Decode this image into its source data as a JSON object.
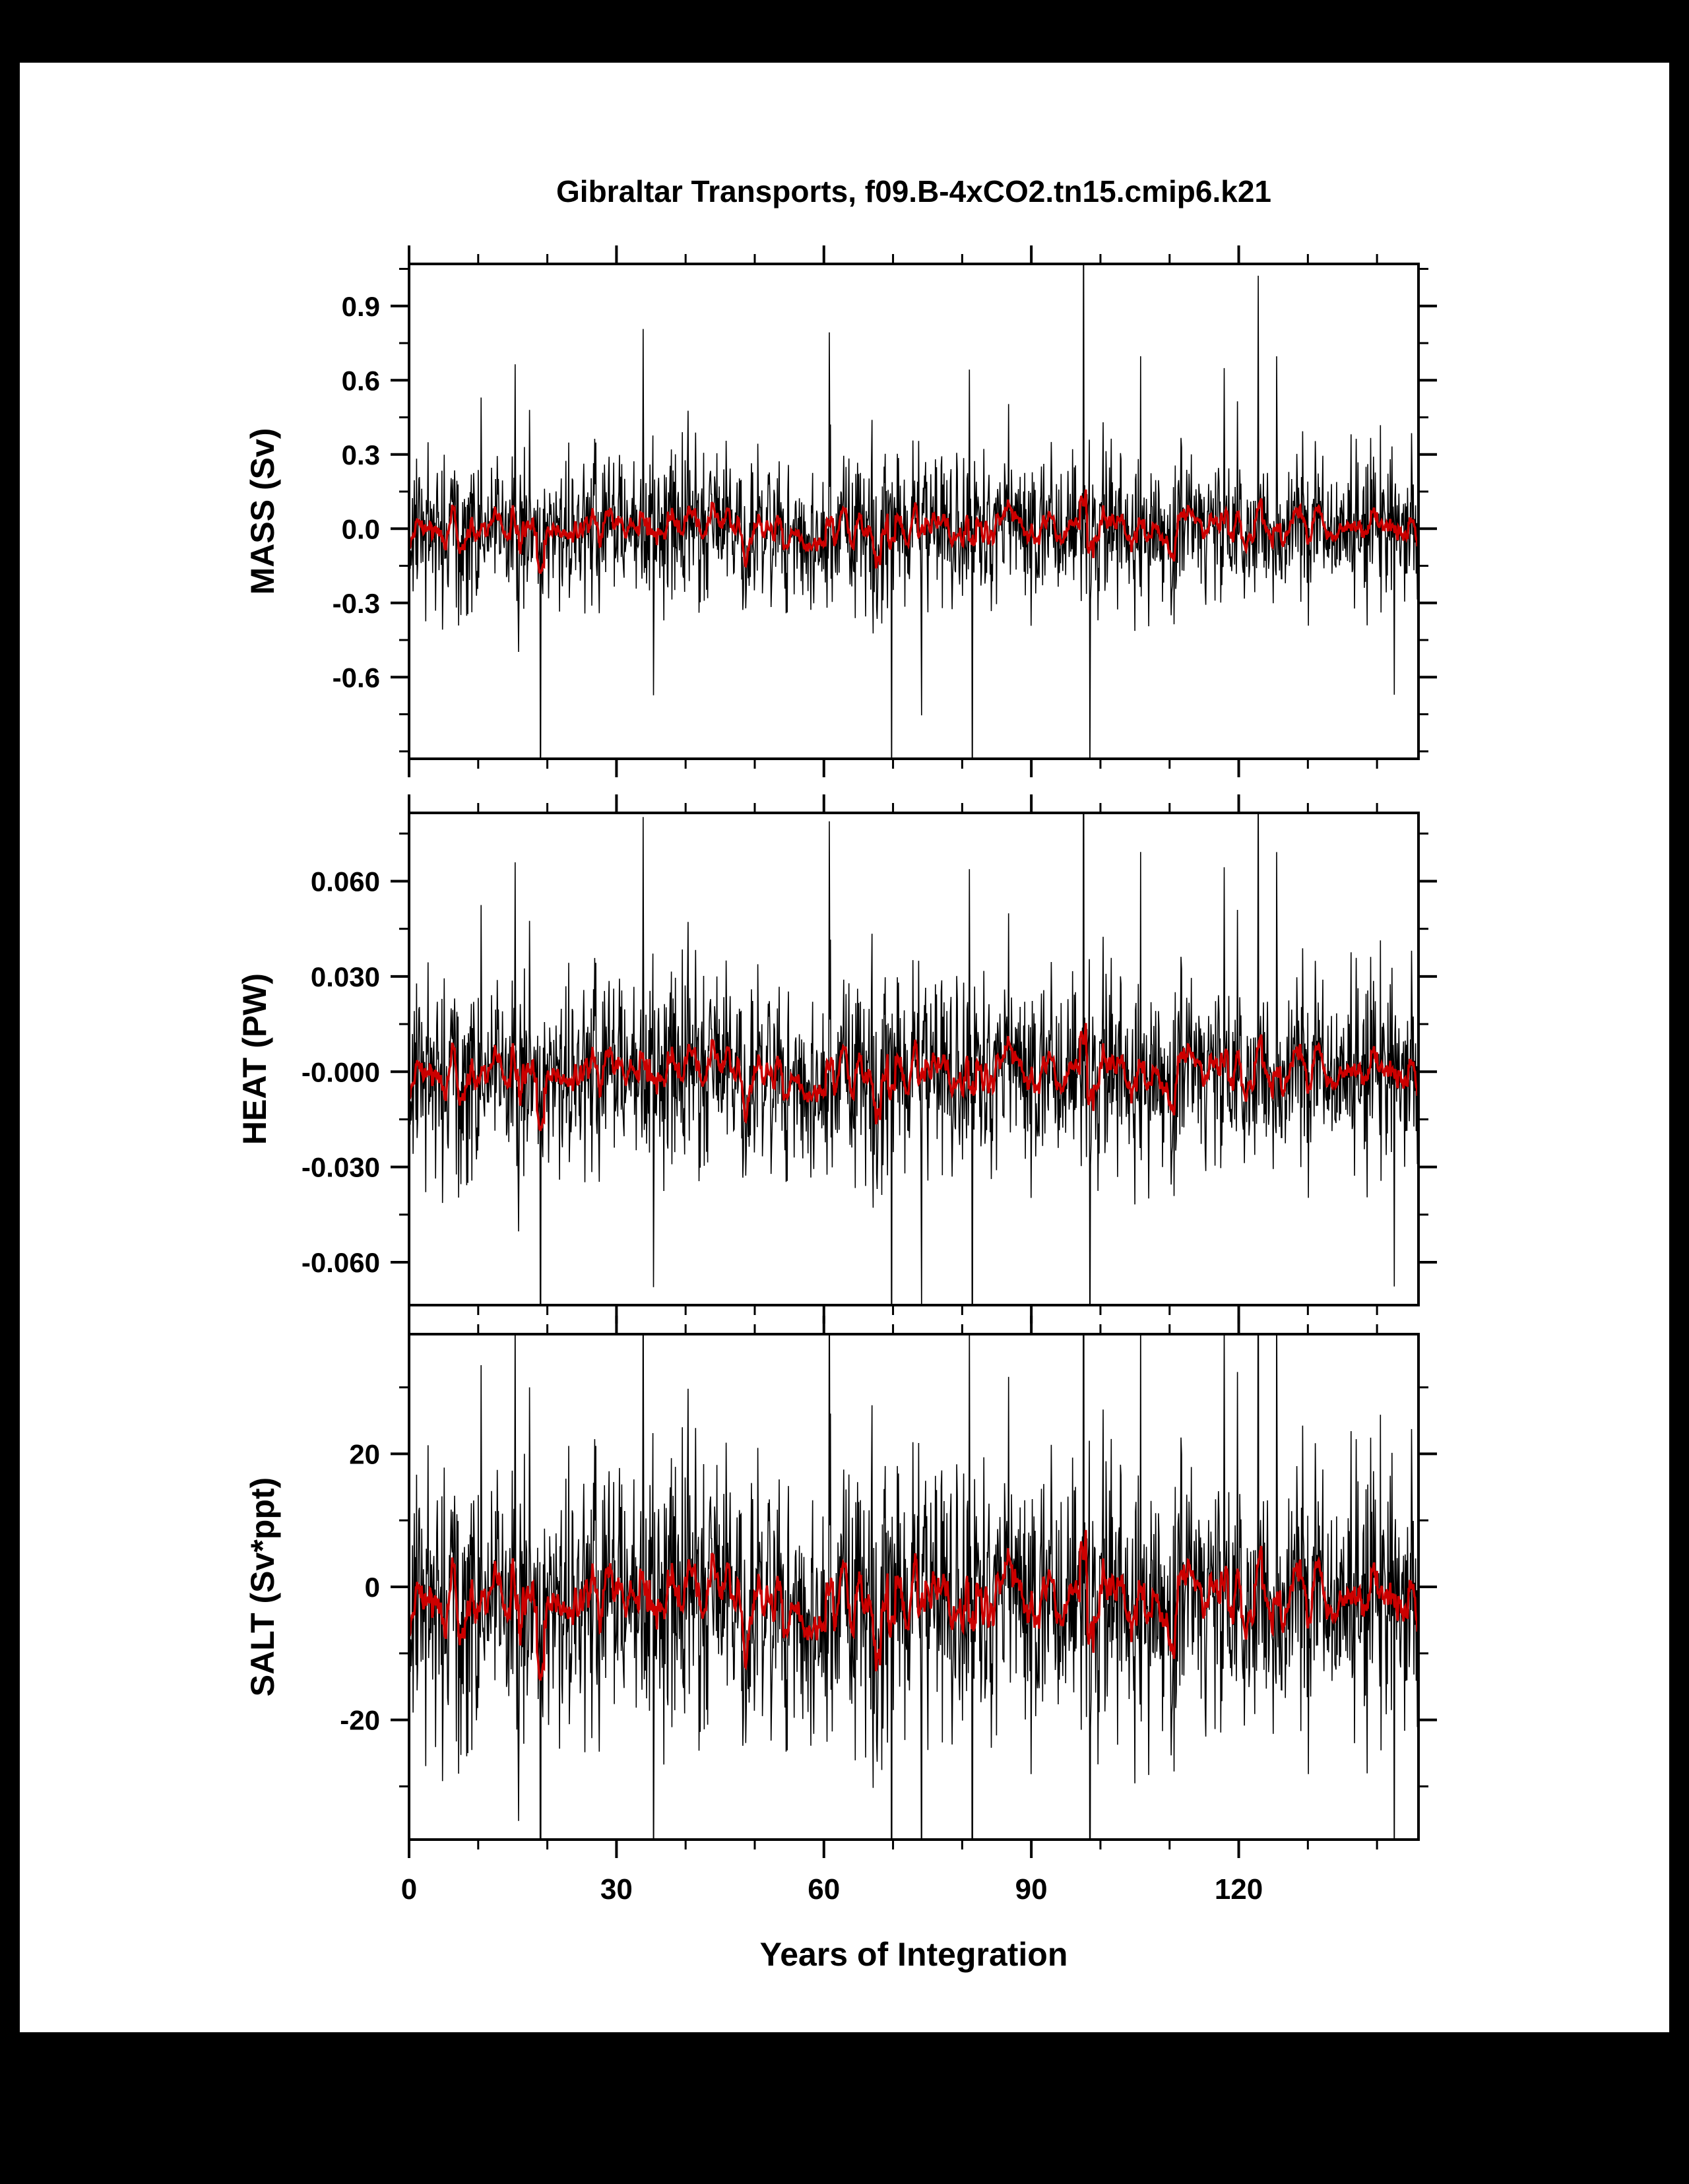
{
  "title": "Gibraltar Transports, f09.B-4xCO2.tn15.cmip6.k21",
  "xlabel": "Years of Integration",
  "chart_data": {
    "type": "line",
    "title": "Gibraltar Transports, f09.B-4xCO2.tn15.cmip6.k21",
    "xlabel": "Years of Integration",
    "x_range": [
      0,
      146
    ],
    "x_major_ticks": [
      0,
      30,
      60,
      90,
      120
    ],
    "x_major_tick_labels": [
      "0",
      "30",
      "60",
      "90",
      "120"
    ],
    "x_minor_step": 10,
    "points_per_year": 12,
    "seed": 1337,
    "spike_prob": 0.02,
    "spike_gain": 3.4,
    "smooth_window": 13,
    "grid": "off",
    "legend": "none",
    "description": "Three stacked panels of monthly Gibraltar strait transport time series (black, zero-mean noisy monthly values) with 12-month running mean overlaid in red; all panels are scaled versions of the same transport variability.",
    "panels": [
      {
        "name": "MASS",
        "ylabel": "MASS (Sv)",
        "ylim": [
          -0.93,
          1.07
        ],
        "ytick_values": [
          0.9,
          0.6,
          0.3,
          0.0,
          -0.3,
          -0.6
        ],
        "ytick_labels": [
          "0.9",
          "0.6",
          "0.3",
          "0.0",
          "-0.3",
          "-0.6"
        ],
        "y_major_step": 0.3,
        "mean": 0.0,
        "noise_sd": 0.15,
        "line_color": "#000000",
        "smooth_color": "#cc0000"
      },
      {
        "name": "HEAT",
        "ylabel": "HEAT (PW)",
        "ylim": [
          -0.0735,
          0.0815
        ],
        "ytick_values": [
          0.06,
          0.03,
          0.0,
          -0.03,
          -0.06
        ],
        "ytick_labels": [
          "0.060",
          "0.030",
          "-0.000",
          "-0.030",
          "-0.060"
        ],
        "y_major_step": 0.03,
        "mean": -0.0005,
        "noise_sd": 0.015,
        "line_color": "#000000",
        "smooth_color": "#cc0000"
      },
      {
        "name": "SALT",
        "ylabel": "SALT (Sv*ppt)",
        "ylim": [
          -38,
          38
        ],
        "ytick_values": [
          20,
          0,
          -20
        ],
        "ytick_labels": [
          "20",
          "0",
          "-20"
        ],
        "y_major_step": 20,
        "mean": -2.0,
        "noise_sd": 10.0,
        "line_color": "#000000",
        "smooth_color": "#cc0000"
      }
    ]
  }
}
